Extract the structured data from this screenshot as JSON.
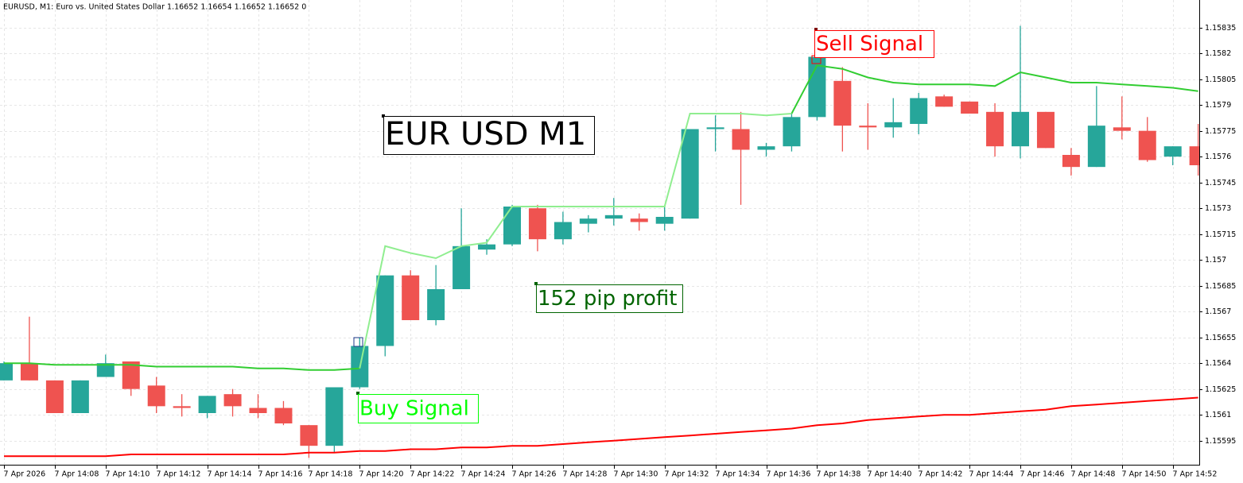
{
  "chart_data": {
    "type": "candlestick",
    "title": "EURUSD, M1:  Euro vs. United States Dollar  1.16652 1.16654 1.16652 1.16652  0",
    "categories": [
      "7 Apr 2026",
      null,
      "7 Apr 14:08",
      null,
      "7 Apr 14:10",
      null,
      "7 Apr 14:12",
      null,
      "7 Apr 14:14",
      null,
      "7 Apr 14:16",
      null,
      "7 Apr 14:18",
      null,
      "7 Apr 14:20",
      null,
      "7 Apr 14:22",
      null,
      "7 Apr 14:24",
      null,
      "7 Apr 14:26",
      null,
      "7 Apr 14:28",
      null,
      "7 Apr 14:30",
      null,
      "7 Apr 14:32",
      null,
      "7 Apr 14:34",
      null,
      "7 Apr 14:36",
      null,
      "7 Apr 14:38",
      null,
      "7 Apr 14:40",
      null,
      "7 Apr 14:42",
      null,
      "7 Apr 14:44",
      null,
      "7 Apr 14:46",
      null,
      "7 Apr 14:48",
      null,
      "7 Apr 14:50",
      null,
      "7 Apr 14:52",
      null
    ],
    "open": [
      1.1563,
      1.1564,
      1.1563,
      1.15611,
      1.15632,
      1.15641,
      1.15627,
      1.15615,
      1.15611,
      1.15622,
      1.15614,
      1.15614,
      1.15604,
      1.15592,
      1.15626,
      1.1565,
      1.15691,
      1.15665,
      1.15683,
      1.15706,
      1.15709,
      1.1573,
      1.15712,
      1.15721,
      1.15724,
      1.15724,
      1.15721,
      1.15724,
      1.15776,
      1.15776,
      1.15764,
      1.15766,
      1.15783,
      1.15804,
      1.15778,
      1.15777,
      1.15779,
      1.15795,
      1.15792,
      1.15786,
      1.15766,
      1.15786,
      1.15761,
      1.15754,
      1.15777,
      1.15775,
      1.1576,
      1.15766
    ],
    "high": [
      1.15641,
      1.15667,
      1.1563,
      1.1563,
      1.15645,
      1.15641,
      1.15632,
      1.15622,
      1.15621,
      1.15625,
      1.15622,
      1.15618,
      1.15604,
      1.15626,
      1.15655,
      1.15691,
      1.15694,
      1.15697,
      1.1573,
      1.15712,
      1.15732,
      1.15732,
      1.15728,
      1.15726,
      1.15736,
      1.15727,
      1.15731,
      1.15776,
      1.15784,
      1.15786,
      1.15768,
      1.15785,
      1.15818,
      1.15812,
      1.15791,
      1.15794,
      1.15797,
      1.15796,
      1.15792,
      1.15791,
      1.15836,
      1.15786,
      1.15765,
      1.15801,
      1.15795,
      1.15783,
      1.15766,
      1.15779
    ],
    "low": [
      1.1563,
      1.1563,
      1.15611,
      1.15611,
      1.15632,
      1.15621,
      1.15611,
      1.15609,
      1.15608,
      1.15609,
      1.15608,
      1.15604,
      1.15585,
      1.15588,
      1.15625,
      1.15644,
      1.15665,
      1.15662,
      1.15683,
      1.15703,
      1.15708,
      1.15705,
      1.15709,
      1.15716,
      1.1572,
      1.15717,
      1.15717,
      1.15724,
      1.15763,
      1.15732,
      1.1576,
      1.15763,
      1.15781,
      1.15763,
      1.15764,
      1.15771,
      1.15773,
      1.15789,
      1.15785,
      1.1576,
      1.15759,
      1.15765,
      1.15749,
      1.15754,
      1.1577,
      1.15757,
      1.15755,
      1.15749
    ],
    "close": [
      1.1564,
      1.1563,
      1.15611,
      1.1563,
      1.1564,
      1.15625,
      1.15615,
      1.15614,
      1.15621,
      1.15615,
      1.15611,
      1.15605,
      1.15592,
      1.15626,
      1.1565,
      1.15691,
      1.15665,
      1.15683,
      1.15708,
      1.15709,
      1.15731,
      1.15712,
      1.15722,
      1.15724,
      1.15726,
      1.15722,
      1.15725,
      1.15776,
      1.15777,
      1.15764,
      1.15766,
      1.15783,
      1.15818,
      1.15778,
      1.15777,
      1.1578,
      1.15794,
      1.15789,
      1.15785,
      1.15766,
      1.15786,
      1.15765,
      1.15754,
      1.15778,
      1.15775,
      1.15758,
      1.15766,
      1.15755
    ],
    "up_color": "#26a69a",
    "down_color": "#ef5350",
    "lines": [
      {
        "color": "#32cd32",
        "values": [
          1.1564,
          1.1564,
          1.15639,
          1.15639,
          1.15639,
          1.15639,
          1.15638,
          1.15638,
          1.15638,
          1.15638,
          1.15637,
          1.15637,
          1.15636,
          1.15636,
          1.15637,
          null,
          null,
          null,
          null,
          null,
          null,
          null,
          null,
          null,
          null,
          null,
          null,
          null,
          null,
          null,
          null,
          1.15785,
          1.15813,
          1.15811,
          1.15806,
          1.15803,
          1.15802,
          1.15802,
          1.15802,
          1.15801,
          1.15809,
          1.15806,
          1.15803,
          1.15803,
          1.15802,
          1.15801,
          1.158,
          1.15798
        ]
      },
      {
        "color": "#90ee90",
        "values": [
          null,
          null,
          null,
          null,
          null,
          null,
          null,
          null,
          null,
          null,
          null,
          null,
          null,
          null,
          1.15637,
          1.15708,
          1.15704,
          1.15701,
          1.15708,
          1.1571,
          1.15731,
          1.15731,
          1.15731,
          1.15731,
          1.15731,
          1.15731,
          1.15731,
          1.15785,
          1.15785,
          1.15785,
          1.15784,
          1.15785,
          null,
          null,
          null,
          null,
          null,
          null,
          null,
          null,
          null,
          null,
          null,
          null,
          null,
          null,
          null,
          null
        ]
      },
      {
        "color": "#ff0000",
        "values": [
          1.15586,
          1.15586,
          1.15586,
          1.15586,
          1.15586,
          1.15587,
          1.15587,
          1.15587,
          1.15587,
          1.15587,
          1.15587,
          1.15587,
          1.15588,
          1.15588,
          1.15589,
          1.15589,
          1.1559,
          1.1559,
          1.15591,
          1.15591,
          1.15592,
          1.15592,
          1.15593,
          1.15594,
          1.15595,
          1.15596,
          1.15597,
          1.15598,
          1.15599,
          1.156,
          1.15601,
          1.15602,
          1.15604,
          1.15605,
          1.15607,
          1.15608,
          1.15609,
          1.1561,
          1.1561,
          1.15611,
          1.15612,
          1.15613,
          1.15615,
          1.15616,
          1.15617,
          1.15618,
          1.15619,
          1.1562
        ]
      }
    ],
    "ylim": [
      1.15581,
      1.15851
    ],
    "yticks": [
      1.15595,
      1.1561,
      1.15625,
      1.1564,
      1.15655,
      1.1567,
      1.15685,
      1.157,
      1.15715,
      1.1573,
      1.15745,
      1.1576,
      1.15775,
      1.1579,
      1.15805,
      1.1582,
      1.15835
    ],
    "grid": true,
    "annotations": [
      {
        "text": "EUR USD M1",
        "color": "#000000"
      },
      {
        "text": "Sell Signal",
        "color": "#ff0000"
      },
      {
        "text": "Buy Signal",
        "color": "#00ff00"
      },
      {
        "text": "152 pip profit",
        "color": "#006400"
      }
    ]
  }
}
